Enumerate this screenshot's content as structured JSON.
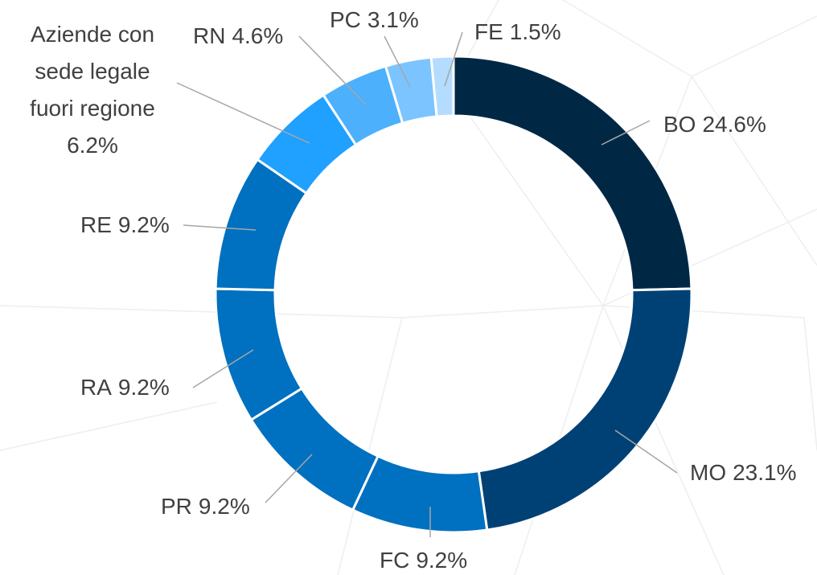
{
  "chart_data": {
    "type": "donut",
    "categories": [
      "BO",
      "MO",
      "FC",
      "PR",
      "RA",
      "RE",
      "Aziende con sede legale fuori regione",
      "RN",
      "PC",
      "FE"
    ],
    "values": [
      24.6,
      23.1,
      9.2,
      9.2,
      9.2,
      9.2,
      6.2,
      4.6,
      3.1,
      1.5
    ],
    "value_labels": [
      "24.6%",
      "23.1%",
      "9.2%",
      "9.2%",
      "9.2%",
      "9.2%",
      "6.2%",
      "4.6%",
      "3.1%",
      "1.5%"
    ],
    "colors": [
      "#002845",
      "#004175",
      "#0070c0",
      "#0070c0",
      "#0070c0",
      "#0070c0",
      "#20a0ff",
      "#4cb0fc",
      "#7cc4ff",
      "#b4dcff"
    ]
  }
}
